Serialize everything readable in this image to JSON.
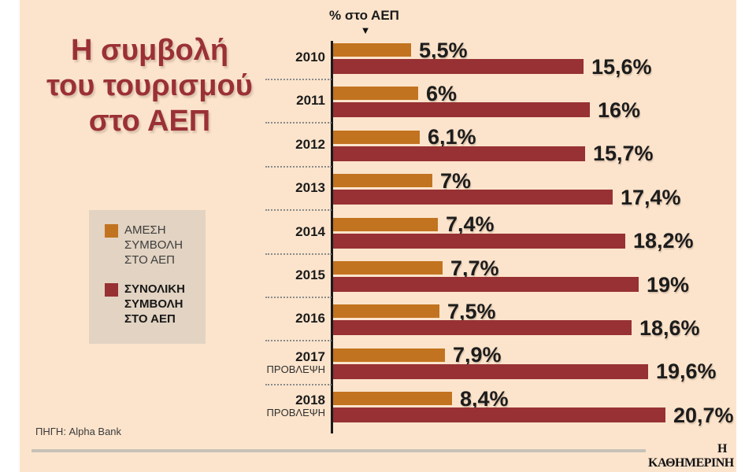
{
  "title": {
    "lines": [
      "Η συμβολή",
      "του τουρισμού",
      "στο ΑΕΠ"
    ]
  },
  "axis_header": {
    "label": "% στο ΑΕΠ",
    "pointer_icon": "▼"
  },
  "legend": {
    "items": [
      {
        "label_lines": [
          "ΑΜΕΣΗ",
          "ΣΥΜΒΟΛΗ",
          "ΣΤΟ ΑΕΠ"
        ],
        "color": "#c2731f",
        "bold": false
      },
      {
        "label_lines": [
          "ΣΥΝΟΛΙΚΗ",
          "ΣΥΜΒΟΛΗ",
          "ΣΤΟ ΑΕΠ"
        ],
        "color": "#973134",
        "bold": true
      }
    ]
  },
  "chart_data": {
    "type": "bar",
    "orientation": "horizontal",
    "title": "Η συμβολή του τουρισμού στο ΑΕΠ",
    "value_axis_label": "% στο ΑΕΠ",
    "xlim": [
      0,
      22
    ],
    "grid": "dotted row separators left of axis",
    "legend_position": "left",
    "categories": [
      "2010",
      "2011",
      "2012",
      "2013",
      "2014",
      "2015",
      "2016",
      "2017",
      "2018"
    ],
    "category_sublabels": [
      null,
      null,
      null,
      null,
      null,
      null,
      null,
      "ΠΡΟΒΛΕΨΗ",
      "ΠΡΟΒΛΕΨΗ"
    ],
    "series": [
      {
        "name": "ΑΜΕΣΗ ΣΥΜΒΟΛΗ ΣΤΟ ΑΕΠ",
        "color": "#c2731f",
        "values": [
          5.5,
          6,
          6.1,
          7,
          7.4,
          7.7,
          7.5,
          7.9,
          8.4
        ],
        "labels": [
          "5,5%",
          "6%",
          "6,1%",
          "7%",
          "7,4%",
          "7,7%",
          "7,5%",
          "7,9%",
          "8,4%"
        ]
      },
      {
        "name": "ΣΥΝΟΛΙΚΗ ΣΥΜΒΟΛΗ ΣΤΟ ΑΕΠ",
        "color": "#973134",
        "values": [
          15.6,
          16,
          15.7,
          17.4,
          18.2,
          19,
          18.6,
          19.6,
          20.7
        ],
        "labels": [
          "15,6%",
          "16%",
          "15,7%",
          "17,4%",
          "18,2%",
          "19%",
          "18,6%",
          "19,6%",
          "20,7%"
        ]
      }
    ]
  },
  "footer": {
    "source": "ΠΗΓΗ: Alpha Bank",
    "brand": "Η ΚΑΘΗΜΕΡΙΝΗ"
  },
  "colors": {
    "background": "#fce4cc",
    "page_margin": "#ffffff",
    "direct_bar": "#c2731f",
    "total_bar": "#973134",
    "title_text": "#9a3136",
    "legend_box": "#e2d3c2",
    "axis": "#1a1a1a",
    "footer_rule": "#c6c2b8"
  }
}
